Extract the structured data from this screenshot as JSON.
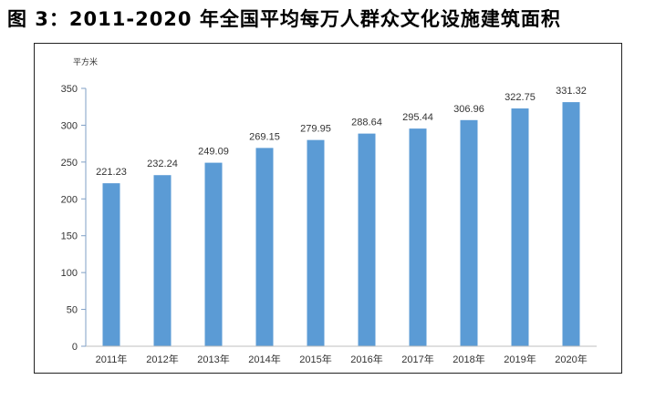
{
  "title": "图 3：2011-2020 年全国平均每万人群众文化设施建筑面积",
  "chart_data": {
    "type": "bar",
    "title": "图 3：2011-2020 年全国平均每万人群众文化设施建筑面积",
    "ylabel": "平方米",
    "xlabel": "",
    "categories": [
      "2011年",
      "2012年",
      "2013年",
      "2014年",
      "2015年",
      "2016年",
      "2017年",
      "2018年",
      "2019年",
      "2020年"
    ],
    "values": [
      221.23,
      232.24,
      249.09,
      269.15,
      279.95,
      288.64,
      295.44,
      306.96,
      322.75,
      331.32
    ],
    "data_labels": [
      "221.23",
      "232.24",
      "249.09",
      "269.15",
      "279.95",
      "288.64",
      "295.44",
      "306.96",
      "322.75",
      "331.32"
    ],
    "yticks": [
      0,
      50,
      100,
      150,
      200,
      250,
      300,
      350
    ],
    "ylim": [
      0,
      350
    ],
    "grid": false,
    "bar_color": "#5b9bd5",
    "axis_color": "#7f9fc5"
  }
}
